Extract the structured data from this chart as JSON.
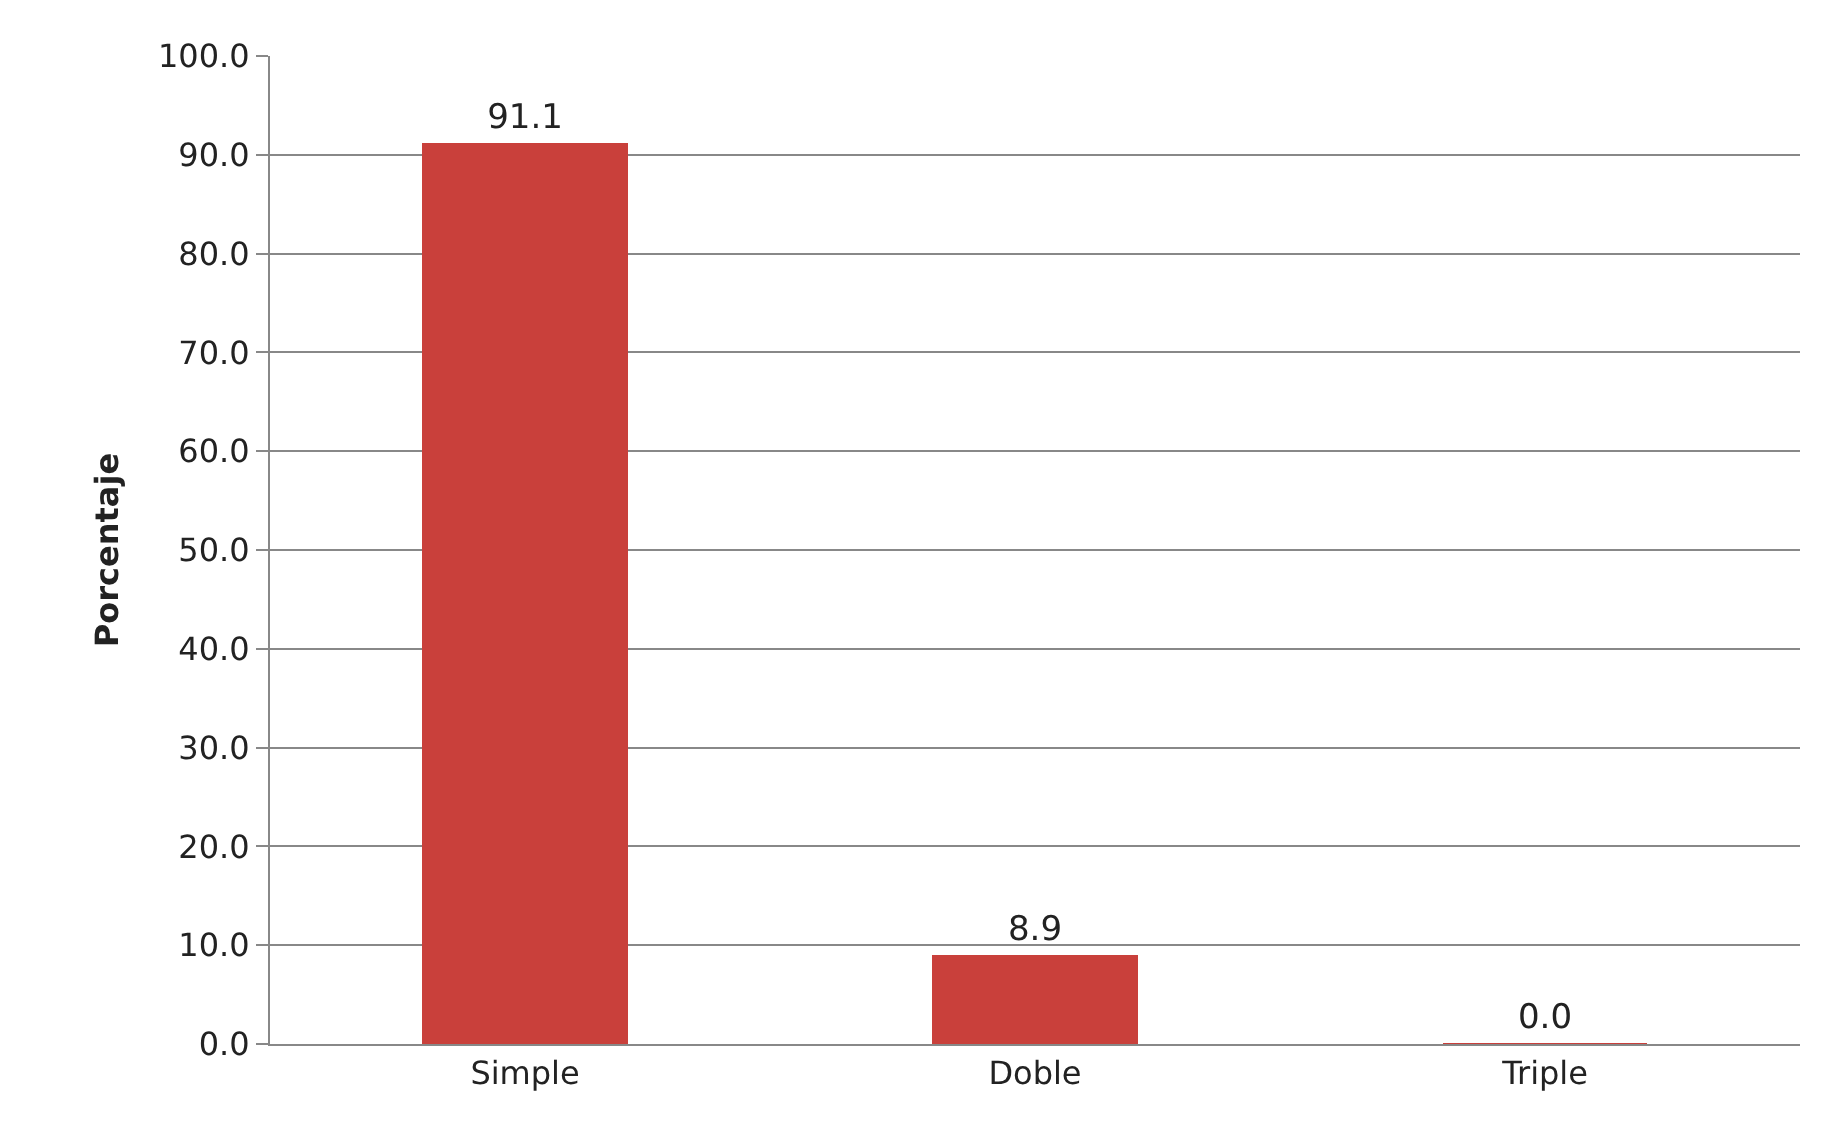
{
  "chart_data": {
    "type": "bar",
    "ylabel": "Porcentaje",
    "categories": [
      "Simple",
      "Doble",
      "Triple"
    ],
    "values": [
      91.1,
      8.9,
      0.0
    ],
    "value_labels": [
      "91.1",
      "8.9",
      "0.0"
    ],
    "color": "#c9403b",
    "ylim": [
      0,
      100
    ],
    "yticks": [
      {
        "value": 0,
        "label": "0.0"
      },
      {
        "value": 10,
        "label": "10.0"
      },
      {
        "value": 20,
        "label": "20.0"
      },
      {
        "value": 30,
        "label": "30.0"
      },
      {
        "value": 40,
        "label": "40.0"
      },
      {
        "value": 50,
        "label": "50.0"
      },
      {
        "value": 60,
        "label": "60.0"
      },
      {
        "value": 70,
        "label": "70.0"
      },
      {
        "value": 80,
        "label": "80.0"
      },
      {
        "value": 90,
        "label": "90.0"
      },
      {
        "value": 100,
        "label": "100.0"
      }
    ],
    "grid": "y",
    "legend": false
  }
}
